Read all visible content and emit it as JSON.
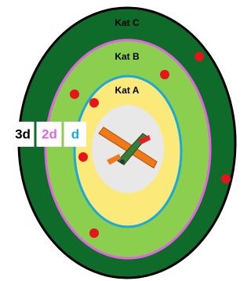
{
  "zones": [
    {
      "label": "Kat C"
    },
    {
      "label": "Kat B"
    },
    {
      "label": "Kat A"
    }
  ],
  "distances": [
    {
      "label": "3d"
    },
    {
      "label": "2d"
    },
    {
      "label": "d"
    }
  ]
}
